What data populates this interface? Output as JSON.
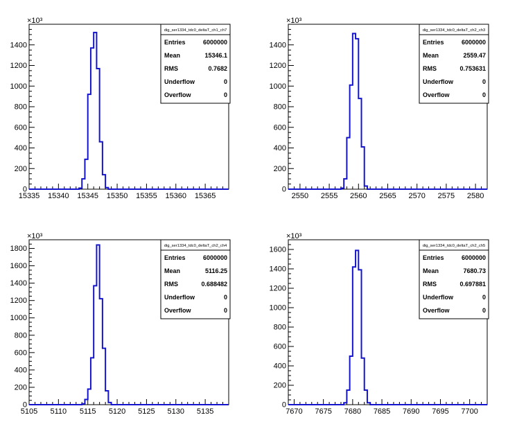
{
  "chart_data": [
    {
      "type": "bar",
      "histogram": true,
      "exponent_label": "×10³",
      "stats": {
        "title": "dig_ser1334_tdc0_deltaT_ch1_ch7",
        "rows": [
          {
            "label": "Entries",
            "value": "6000000"
          },
          {
            "label": "Mean",
            "value": "15346.1"
          },
          {
            "label": "RMS",
            "value": "0.7682"
          },
          {
            "label": "Underflow",
            "value": "0"
          },
          {
            "label": "Overflow",
            "value": "0"
          }
        ]
      },
      "xlim": [
        15335,
        15369
      ],
      "ylim": [
        0,
        1600
      ],
      "xticks": [
        15335,
        15340,
        15345,
        15350,
        15355,
        15360,
        15365
      ],
      "yticks": [
        0,
        200,
        400,
        600,
        800,
        1000,
        1200,
        1400
      ],
      "bin_width": 0.5,
      "bins": [
        {
          "x": 15343.5,
          "y": 10
        },
        {
          "x": 15344.0,
          "y": 100
        },
        {
          "x": 15344.5,
          "y": 290
        },
        {
          "x": 15345.0,
          "y": 920
        },
        {
          "x": 15345.5,
          "y": 1370
        },
        {
          "x": 15346.0,
          "y": 1520
        },
        {
          "x": 15346.5,
          "y": 1170
        },
        {
          "x": 15347.0,
          "y": 460
        },
        {
          "x": 15347.5,
          "y": 140
        },
        {
          "x": 15348.0,
          "y": 15
        }
      ]
    },
    {
      "type": "bar",
      "histogram": true,
      "exponent_label": "×10³",
      "stats": {
        "title": "dig_ser1334_tdc0_deltaT_ch2_ch3",
        "rows": [
          {
            "label": "Entries",
            "value": "6000000"
          },
          {
            "label": "Mean",
            "value": "2559.47"
          },
          {
            "label": "RMS",
            "value": "0.753631"
          },
          {
            "label": "Underflow",
            "value": "0"
          },
          {
            "label": "Overflow",
            "value": "0"
          }
        ]
      },
      "xlim": [
        2548,
        2582
      ],
      "ylim": [
        0,
        1600
      ],
      "xticks": [
        2550,
        2555,
        2560,
        2565,
        2570,
        2575,
        2580
      ],
      "yticks": [
        0,
        200,
        400,
        600,
        800,
        1000,
        1200,
        1400
      ],
      "bin_width": 0.5,
      "bins": [
        {
          "x": 2557.0,
          "y": 10
        },
        {
          "x": 2557.5,
          "y": 100
        },
        {
          "x": 2558.0,
          "y": 500
        },
        {
          "x": 2558.5,
          "y": 1010
        },
        {
          "x": 2559.0,
          "y": 1510
        },
        {
          "x": 2559.5,
          "y": 1460
        },
        {
          "x": 2560.0,
          "y": 880
        },
        {
          "x": 2560.5,
          "y": 410
        },
        {
          "x": 2561.0,
          "y": 30
        }
      ]
    },
    {
      "type": "bar",
      "histogram": true,
      "exponent_label": "×10³",
      "stats": {
        "title": "dig_ser1334_tdc0_deltaT_ch2_ch4",
        "rows": [
          {
            "label": "Entries",
            "value": "6000000"
          },
          {
            "label": "Mean",
            "value": "5116.25"
          },
          {
            "label": "RMS",
            "value": "0.688482"
          },
          {
            "label": "Underflow",
            "value": "0"
          },
          {
            "label": "Overflow",
            "value": "0"
          }
        ]
      },
      "xlim": [
        5105,
        5139
      ],
      "ylim": [
        0,
        1900
      ],
      "xticks": [
        5105,
        5110,
        5115,
        5120,
        5125,
        5130,
        5135
      ],
      "yticks": [
        0,
        200,
        400,
        600,
        800,
        1000,
        1200,
        1400,
        1600,
        1800
      ],
      "bin_width": 0.5,
      "bins": [
        {
          "x": 5114.0,
          "y": 10
        },
        {
          "x": 5114.5,
          "y": 60
        },
        {
          "x": 5115.0,
          "y": 180
        },
        {
          "x": 5115.5,
          "y": 540
        },
        {
          "x": 5116.0,
          "y": 1370
        },
        {
          "x": 5116.5,
          "y": 1840
        },
        {
          "x": 5117.0,
          "y": 1220
        },
        {
          "x": 5117.5,
          "y": 650
        },
        {
          "x": 5118.0,
          "y": 160
        },
        {
          "x": 5118.5,
          "y": 25
        }
      ]
    },
    {
      "type": "bar",
      "histogram": true,
      "exponent_label": "×10³",
      "stats": {
        "title": "dig_ser1334_tdc0_deltaT_ch2_ch5",
        "rows": [
          {
            "label": "Entries",
            "value": "6000000"
          },
          {
            "label": "Mean",
            "value": "7680.73"
          },
          {
            "label": "RMS",
            "value": "0.697881"
          },
          {
            "label": "Underflow",
            "value": "0"
          },
          {
            "label": "Overflow",
            "value": "0"
          }
        ]
      },
      "xlim": [
        7669,
        7703
      ],
      "ylim": [
        0,
        1700
      ],
      "xticks": [
        7670,
        7675,
        7680,
        7685,
        7690,
        7695,
        7700
      ],
      "yticks": [
        0,
        200,
        400,
        600,
        800,
        1000,
        1200,
        1400,
        1600
      ],
      "bin_width": 0.5,
      "bins": [
        {
          "x": 7678.5,
          "y": 20
        },
        {
          "x": 7679.0,
          "y": 150
        },
        {
          "x": 7679.5,
          "y": 500
        },
        {
          "x": 7680.0,
          "y": 1420
        },
        {
          "x": 7680.5,
          "y": 1590
        },
        {
          "x": 7681.0,
          "y": 1390
        },
        {
          "x": 7681.5,
          "y": 480
        },
        {
          "x": 7682.0,
          "y": 150
        },
        {
          "x": 7682.5,
          "y": 20
        }
      ]
    }
  ],
  "colors": {
    "line": "#1414cc",
    "axis": "#000000",
    "background": "#ffffff"
  }
}
